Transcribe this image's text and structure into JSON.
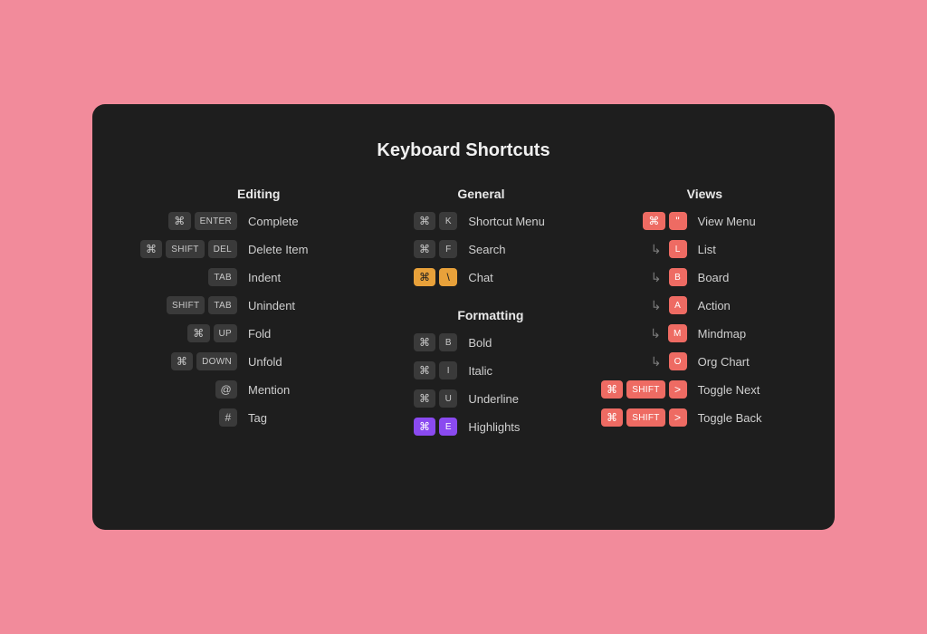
{
  "title": "Keyboard Shortcuts",
  "colors": {
    "page_bg": "#f28b9b",
    "panel_bg": "#1e1e1e",
    "key_bg": "#3a3a3a",
    "key_orange": "#e8a13a",
    "key_purple": "#8a4af0",
    "key_red": "#ee6b63",
    "text": "#cfcfcf"
  },
  "glyphs": {
    "cmd": "⌘",
    "continuation": "↳"
  },
  "columns": [
    {
      "sections": [
        {
          "title": "Editing",
          "rows": [
            {
              "keys": [
                {
                  "t": "⌘",
                  "kind": "sym"
                },
                {
                  "t": "ENTER"
                }
              ],
              "label": "Complete"
            },
            {
              "keys": [
                {
                  "t": "⌘",
                  "kind": "sym"
                },
                {
                  "t": "SHIFT"
                },
                {
                  "t": "DEL"
                }
              ],
              "label": "Delete Item"
            },
            {
              "keys": [
                {
                  "t": "TAB"
                }
              ],
              "label": "Indent"
            },
            {
              "keys": [
                {
                  "t": "SHIFT"
                },
                {
                  "t": "TAB"
                }
              ],
              "label": "Unindent"
            },
            {
              "keys": [
                {
                  "t": "⌘",
                  "kind": "sym"
                },
                {
                  "t": "UP"
                }
              ],
              "label": "Fold"
            },
            {
              "keys": [
                {
                  "t": "⌘",
                  "kind": "sym"
                },
                {
                  "t": "DOWN"
                }
              ],
              "label": "Unfold"
            },
            {
              "keys": [
                {
                  "t": "@",
                  "kind": "sym"
                }
              ],
              "label": "Mention"
            },
            {
              "keys": [
                {
                  "t": "#",
                  "kind": "sym"
                }
              ],
              "label": "Tag"
            }
          ]
        }
      ]
    },
    {
      "sections": [
        {
          "title": "General",
          "rows": [
            {
              "keys": [
                {
                  "t": "⌘",
                  "kind": "sym"
                },
                {
                  "t": "K"
                }
              ],
              "label": "Shortcut Menu"
            },
            {
              "keys": [
                {
                  "t": "⌘",
                  "kind": "sym"
                },
                {
                  "t": "F"
                }
              ],
              "label": "Search"
            },
            {
              "keys": [
                {
                  "t": "⌘",
                  "kind": "sym",
                  "color": "orange"
                },
                {
                  "t": "\\",
                  "kind": "sym",
                  "color": "orange"
                }
              ],
              "label": "Chat"
            }
          ]
        },
        {
          "title": "Formatting",
          "rows": [
            {
              "keys": [
                {
                  "t": "⌘",
                  "kind": "sym"
                },
                {
                  "t": "B"
                }
              ],
              "label": "Bold"
            },
            {
              "keys": [
                {
                  "t": "⌘",
                  "kind": "sym"
                },
                {
                  "t": "I"
                }
              ],
              "label": "Italic"
            },
            {
              "keys": [
                {
                  "t": "⌘",
                  "kind": "sym"
                },
                {
                  "t": "U"
                }
              ],
              "label": "Underline"
            },
            {
              "keys": [
                {
                  "t": "⌘",
                  "kind": "sym",
                  "color": "purple"
                },
                {
                  "t": "E",
                  "color": "purple"
                }
              ],
              "label": "Highlights"
            }
          ]
        }
      ]
    },
    {
      "sections": [
        {
          "title": "Views",
          "rows": [
            {
              "keys": [
                {
                  "t": "⌘",
                  "kind": "sym",
                  "color": "red"
                },
                {
                  "t": "\"",
                  "kind": "sym",
                  "color": "red"
                }
              ],
              "label": "View Menu"
            },
            {
              "continuation": true,
              "keys": [
                {
                  "t": "L",
                  "color": "red"
                }
              ],
              "label": "List"
            },
            {
              "continuation": true,
              "keys": [
                {
                  "t": "B",
                  "color": "red"
                }
              ],
              "label": "Board"
            },
            {
              "continuation": true,
              "keys": [
                {
                  "t": "A",
                  "color": "red"
                }
              ],
              "label": "Action"
            },
            {
              "continuation": true,
              "keys": [
                {
                  "t": "M",
                  "color": "red"
                }
              ],
              "label": "Mindmap"
            },
            {
              "continuation": true,
              "keys": [
                {
                  "t": "O",
                  "color": "red"
                }
              ],
              "label": "Org Chart"
            },
            {
              "keys": [
                {
                  "t": "⌘",
                  "kind": "sym",
                  "color": "red"
                },
                {
                  "t": "SHIFT",
                  "color": "red"
                },
                {
                  "t": ">",
                  "kind": "sym",
                  "color": "red"
                }
              ],
              "label": "Toggle Next"
            },
            {
              "keys": [
                {
                  "t": "⌘",
                  "kind": "sym",
                  "color": "red"
                },
                {
                  "t": "SHIFT",
                  "color": "red"
                },
                {
                  "t": ">",
                  "kind": "sym",
                  "color": "red"
                }
              ],
              "label": "Toggle Back"
            }
          ]
        }
      ]
    }
  ]
}
